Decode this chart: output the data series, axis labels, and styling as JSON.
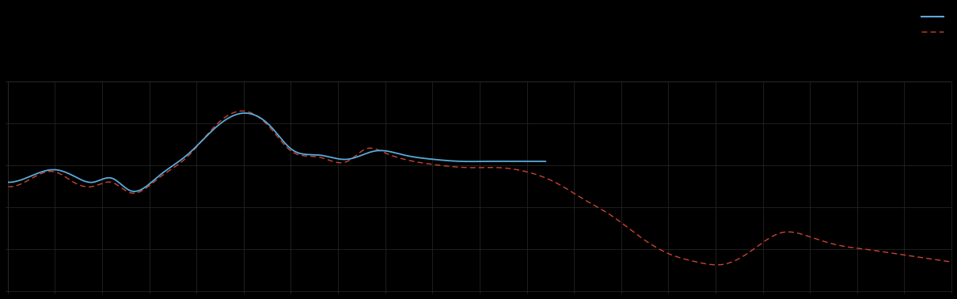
{
  "background_color": "#000000",
  "plot_bg_color": "#000000",
  "grid_color": "#2a2a2a",
  "blue_color": "#5aabdb",
  "red_color": "#cc4433",
  "figsize": [
    12.09,
    3.78
  ],
  "dpi": 100,
  "blue_x": [
    0,
    3,
    5,
    7,
    9,
    11,
    13,
    16,
    19,
    22,
    25,
    28,
    30,
    33,
    36,
    39,
    42,
    45,
    48,
    51,
    54,
    57,
    60,
    63,
    66,
    69,
    72,
    75,
    78,
    81,
    84,
    87,
    90,
    93,
    96,
    99,
    100
  ],
  "blue_y": [
    52,
    56,
    58,
    55,
    52,
    54,
    48,
    55,
    65,
    78,
    85,
    78,
    68,
    65,
    63,
    67,
    65,
    63,
    62,
    62,
    62,
    62,
    62,
    62,
    62,
    62,
    62,
    62,
    62,
    62,
    62,
    62,
    62,
    62,
    62,
    62,
    62
  ],
  "blue_end_x": 57,
  "red_x": [
    0,
    3,
    5,
    7,
    9,
    11,
    13,
    16,
    19,
    22,
    25,
    28,
    30,
    33,
    36,
    38,
    40,
    43,
    46,
    49,
    52,
    55,
    58,
    61,
    64,
    67,
    70,
    73,
    76,
    79,
    82,
    85,
    88,
    91,
    94,
    97,
    100
  ],
  "red_y": [
    50,
    55,
    57,
    52,
    50,
    52,
    47,
    54,
    64,
    79,
    86,
    77,
    67,
    64,
    62,
    68,
    66,
    62,
    60,
    59,
    59,
    57,
    52,
    44,
    36,
    26,
    18,
    14,
    13,
    20,
    28,
    26,
    22,
    20,
    18,
    16,
    14
  ],
  "xlim": [
    0,
    100
  ],
  "ylim": [
    0,
    100
  ],
  "x_grid_step": 5,
  "y_grid_step": 20
}
